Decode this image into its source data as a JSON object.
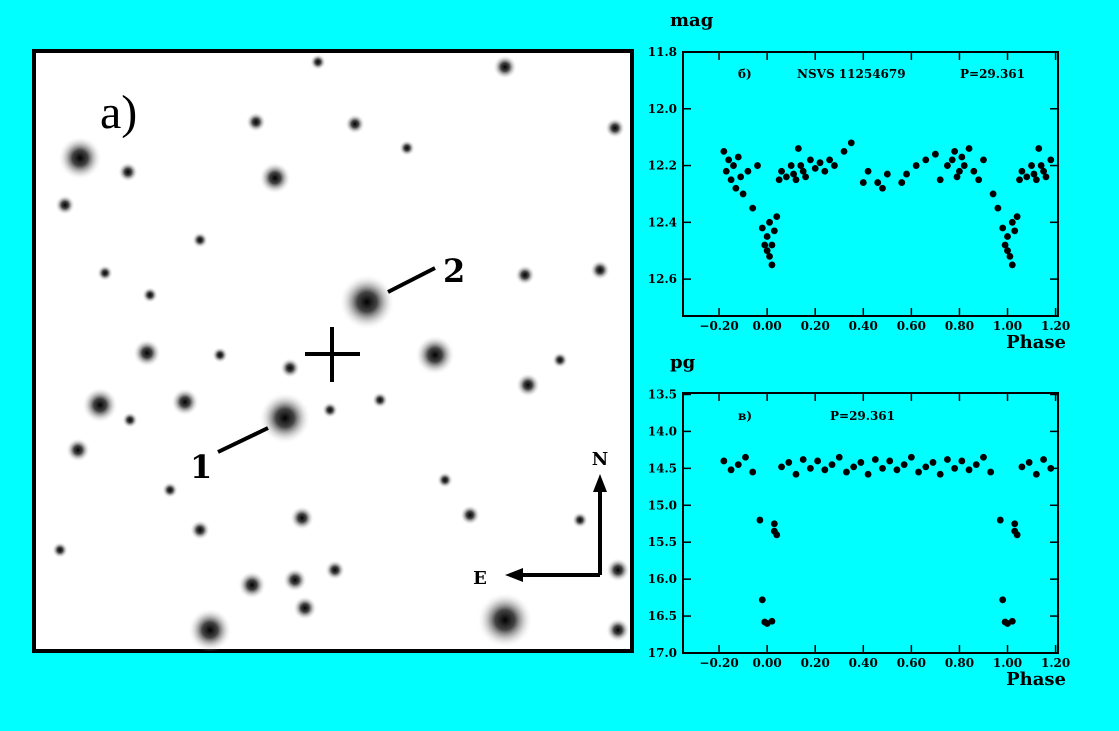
{
  "image": {
    "panel_label": "a)",
    "star_labels": [
      "1",
      "2"
    ],
    "north": "N",
    "east": "E"
  },
  "chart_data": [
    {
      "type": "scatter",
      "y_label": "mag",
      "x_label": "Phase",
      "annotations": [
        "б)",
        "NSVS 11254679",
        "P=29.361"
      ],
      "color": "#000000",
      "y_inverted": true,
      "xlim": [
        -0.35,
        1.21
      ],
      "ylim": [
        11.8,
        12.73
      ],
      "xticks": [
        {
          "value": -0.2,
          "label": "−0.20"
        },
        {
          "value": 0,
          "label": "0.00"
        },
        {
          "value": 0.2,
          "label": "0.20"
        },
        {
          "value": 0.4,
          "label": "0.40"
        },
        {
          "value": 0.6,
          "label": "0.60"
        },
        {
          "value": 0.8,
          "label": "0.80"
        },
        {
          "value": 1,
          "label": "1.00"
        },
        {
          "value": 1.2,
          "label": "1.20"
        }
      ],
      "yticks": [
        11.8,
        {
          "value": 12,
          "label": "12.0"
        },
        12.2,
        12.4,
        12.6
      ],
      "x": [
        -0.18,
        -0.17,
        -0.16,
        -0.15,
        -0.14,
        -0.13,
        -0.12,
        -0.11,
        -0.1,
        -0.08,
        -0.06,
        -0.04,
        -0.02,
        -0.01,
        0.0,
        0.0,
        0.01,
        0.01,
        0.02,
        0.02,
        0.03,
        0.04,
        0.05,
        0.06,
        0.08,
        0.1,
        0.11,
        0.12,
        0.13,
        0.14,
        0.15,
        0.16,
        0.18,
        0.2,
        0.22,
        0.24,
        0.26,
        0.28,
        0.32,
        0.35,
        0.4,
        0.42,
        0.46,
        0.48,
        0.5,
        0.56,
        0.58,
        0.62,
        0.66,
        0.7,
        0.72,
        0.75,
        0.77,
        0.78,
        0.79,
        0.8,
        0.81,
        0.82,
        0.84,
        0.86,
        0.88,
        0.9,
        0.94,
        0.96,
        0.98,
        0.99,
        1.0,
        1.0,
        1.01,
        1.02,
        1.02,
        1.03,
        1.04,
        1.05,
        1.06,
        1.08,
        1.1,
        1.11,
        1.12,
        1.13,
        1.14,
        1.15,
        1.16,
        1.18
      ],
      "values": [
        12.15,
        12.22,
        12.18,
        12.25,
        12.2,
        12.28,
        12.17,
        12.24,
        12.3,
        12.22,
        12.35,
        12.2,
        12.42,
        12.48,
        12.5,
        12.45,
        12.52,
        12.4,
        12.48,
        12.55,
        12.43,
        12.38,
        12.25,
        12.22,
        12.24,
        12.2,
        12.23,
        12.25,
        12.14,
        12.2,
        12.22,
        12.24,
        12.18,
        12.21,
        12.19,
        12.22,
        12.18,
        12.2,
        12.15,
        12.12,
        12.26,
        12.22,
        12.26,
        12.28,
        12.23,
        12.26,
        12.23,
        12.2,
        12.18,
        12.16,
        12.25,
        12.2,
        12.18,
        12.15,
        12.24,
        12.22,
        12.17,
        12.2,
        12.14,
        12.22,
        12.25,
        12.18,
        12.3,
        12.35,
        12.42,
        12.48,
        12.5,
        12.45,
        12.52,
        12.4,
        12.55,
        12.43,
        12.38,
        12.25,
        12.22,
        12.24,
        12.2,
        12.23,
        12.25,
        12.14,
        12.2,
        12.22,
        12.24,
        12.18
      ]
    },
    {
      "type": "scatter",
      "y_label": "pg",
      "x_label": "Phase",
      "annotations": [
        "в)",
        "P=29.361"
      ],
      "color": "#000000",
      "y_inverted": true,
      "xlim": [
        -0.35,
        1.21
      ],
      "ylim": [
        13.48,
        17.0
      ],
      "xticks": [
        {
          "value": -0.2,
          "label": "−0.20"
        },
        {
          "value": 0,
          "label": "0.00"
        },
        {
          "value": 0.2,
          "label": "0.20"
        },
        {
          "value": 0.4,
          "label": "0.40"
        },
        {
          "value": 0.6,
          "label": "0.60"
        },
        {
          "value": 0.8,
          "label": "0.80"
        },
        {
          "value": 1,
          "label": "1.00"
        },
        {
          "value": 1.2,
          "label": "1.20"
        }
      ],
      "yticks": [
        13.5,
        {
          "value": 14,
          "label": "14.0"
        },
        14.5,
        {
          "value": 15,
          "label": "15.0"
        },
        15.5,
        {
          "value": 16,
          "label": "16.0"
        },
        16.5,
        {
          "value": 17,
          "label": "17.0"
        }
      ],
      "x": [
        -0.18,
        -0.15,
        -0.12,
        -0.09,
        -0.06,
        -0.03,
        -0.02,
        -0.01,
        0.0,
        0.02,
        0.03,
        0.03,
        0.04,
        0.06,
        0.09,
        0.12,
        0.15,
        0.18,
        0.21,
        0.24,
        0.27,
        0.3,
        0.33,
        0.36,
        0.39,
        0.42,
        0.45,
        0.48,
        0.51,
        0.54,
        0.57,
        0.6,
        0.63,
        0.66,
        0.69,
        0.72,
        0.75,
        0.78,
        0.81,
        0.84,
        0.87,
        0.9,
        0.93,
        0.97,
        0.98,
        0.99,
        1.0,
        1.02,
        1.03,
        1.03,
        1.04,
        1.06,
        1.09,
        1.12,
        1.15,
        1.18
      ],
      "values": [
        14.4,
        14.52,
        14.45,
        14.35,
        14.55,
        15.2,
        16.28,
        16.58,
        16.6,
        16.57,
        15.25,
        15.35,
        15.4,
        14.48,
        14.42,
        14.58,
        14.38,
        14.5,
        14.4,
        14.52,
        14.45,
        14.35,
        14.55,
        14.48,
        14.42,
        14.58,
        14.38,
        14.5,
        14.4,
        14.52,
        14.45,
        14.35,
        14.55,
        14.48,
        14.42,
        14.58,
        14.38,
        14.5,
        14.4,
        14.52,
        14.45,
        14.35,
        14.55,
        15.2,
        16.28,
        16.58,
        16.6,
        16.57,
        15.25,
        15.35,
        15.4,
        14.48,
        14.42,
        14.58,
        14.38,
        14.5
      ]
    }
  ]
}
